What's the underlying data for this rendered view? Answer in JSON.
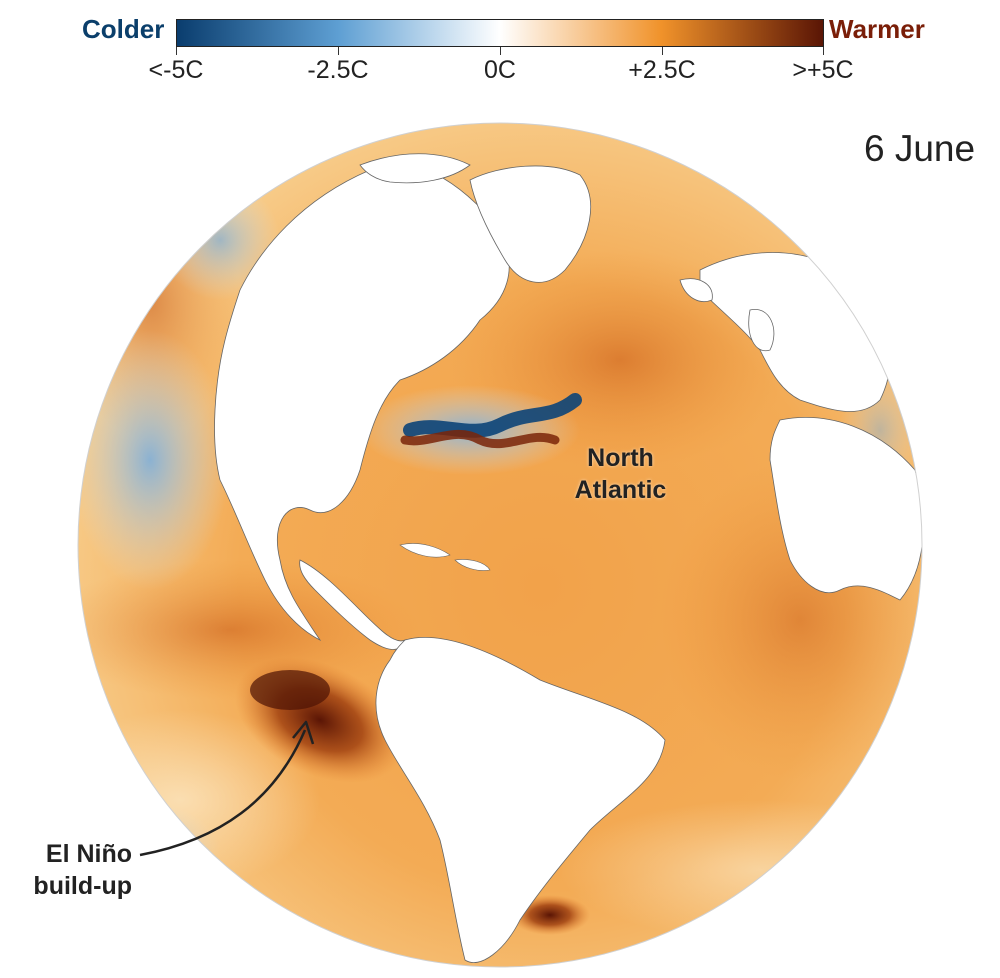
{
  "legend": {
    "colder_label": "Colder",
    "warmer_label": "Warmer",
    "ticks": [
      "<-5C",
      "-2.5C",
      "0C",
      "+2.5C",
      ">+5C"
    ],
    "colors": {
      "cold_end": "#0a3d6e",
      "cold_mid": "#5e9fd3",
      "neutral": "#ffffff",
      "warm_mid": "#f0922a",
      "warm_end": "#5a1505"
    }
  },
  "date": "6 June",
  "annotations": {
    "north_atlantic_line1": "North",
    "north_atlantic_line2": "Atlantic",
    "el_nino_line1": "El Niño",
    "el_nino_line2": "build-up"
  },
  "colors": {
    "land": "#ffffff",
    "warm_ocean": "#f2a646",
    "cold_anomaly": "#9fc3e3",
    "strong_cold": "#0c4478",
    "strong_warm": "#8a2a08"
  },
  "icons": {
    "callout_arrow": "curved-arrow-icon"
  }
}
